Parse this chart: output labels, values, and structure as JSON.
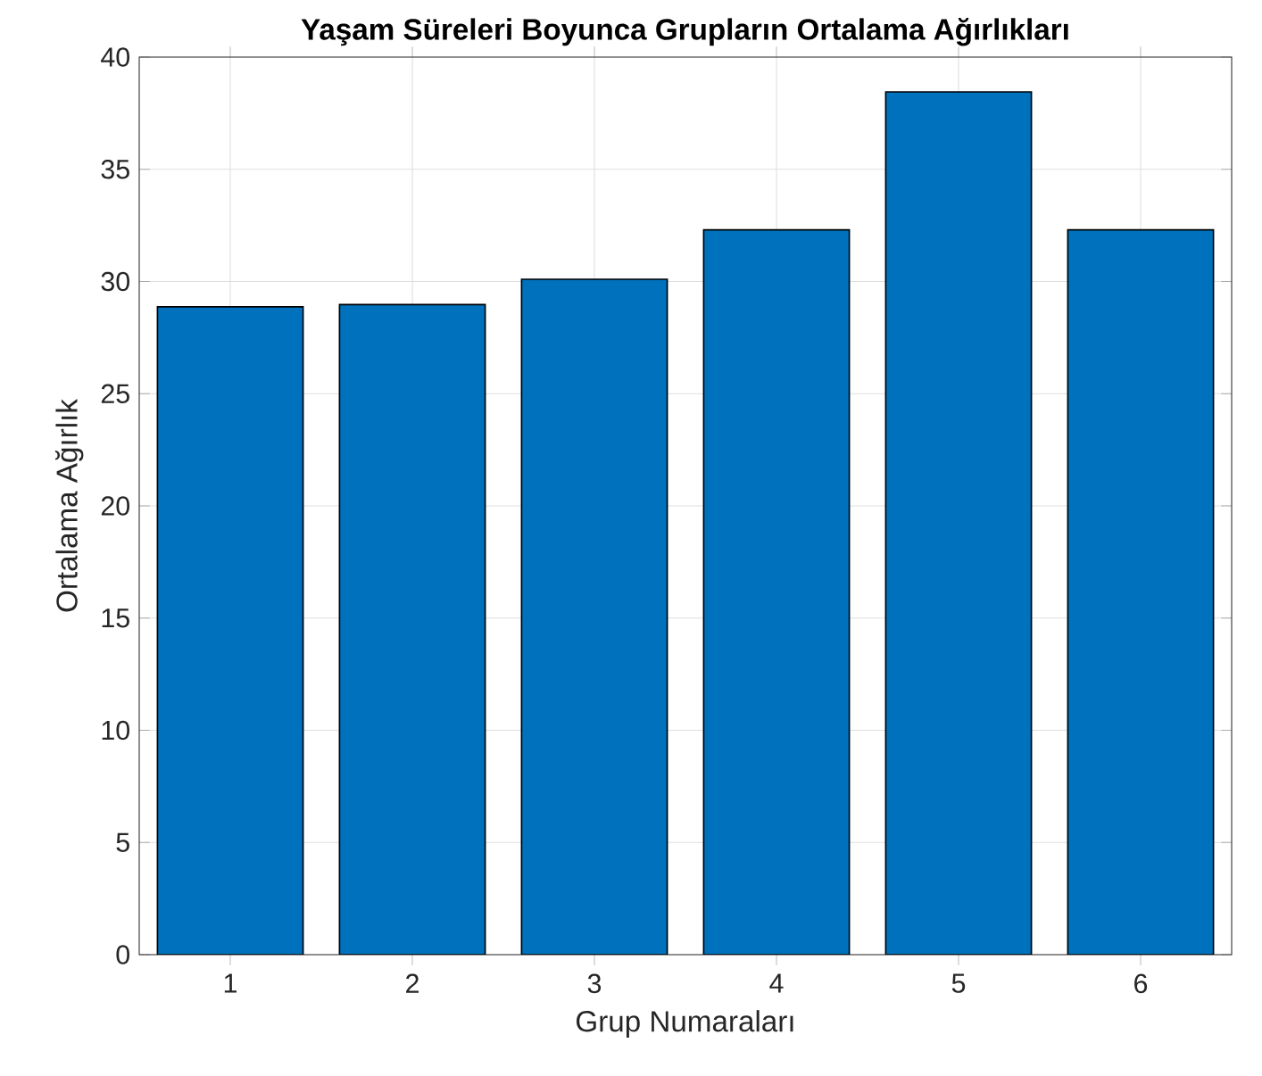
{
  "chart_data": {
    "type": "bar",
    "title": "Yaşam Süreleri Boyunca Grupların Ortalama Ağırlıkları",
    "xlabel": "Grup Numaraları",
    "ylabel": "Ortalama Ağırlık",
    "categories": [
      "1",
      "2",
      "3",
      "4",
      "5",
      "6"
    ],
    "values": [
      28.87,
      28.97,
      30.1,
      32.3,
      38.45,
      32.3
    ],
    "color": "#0072bd",
    "ylim": [
      0,
      40
    ],
    "yticks": [
      0,
      5,
      10,
      15,
      20,
      25,
      30,
      35,
      40
    ],
    "grid": true
  }
}
